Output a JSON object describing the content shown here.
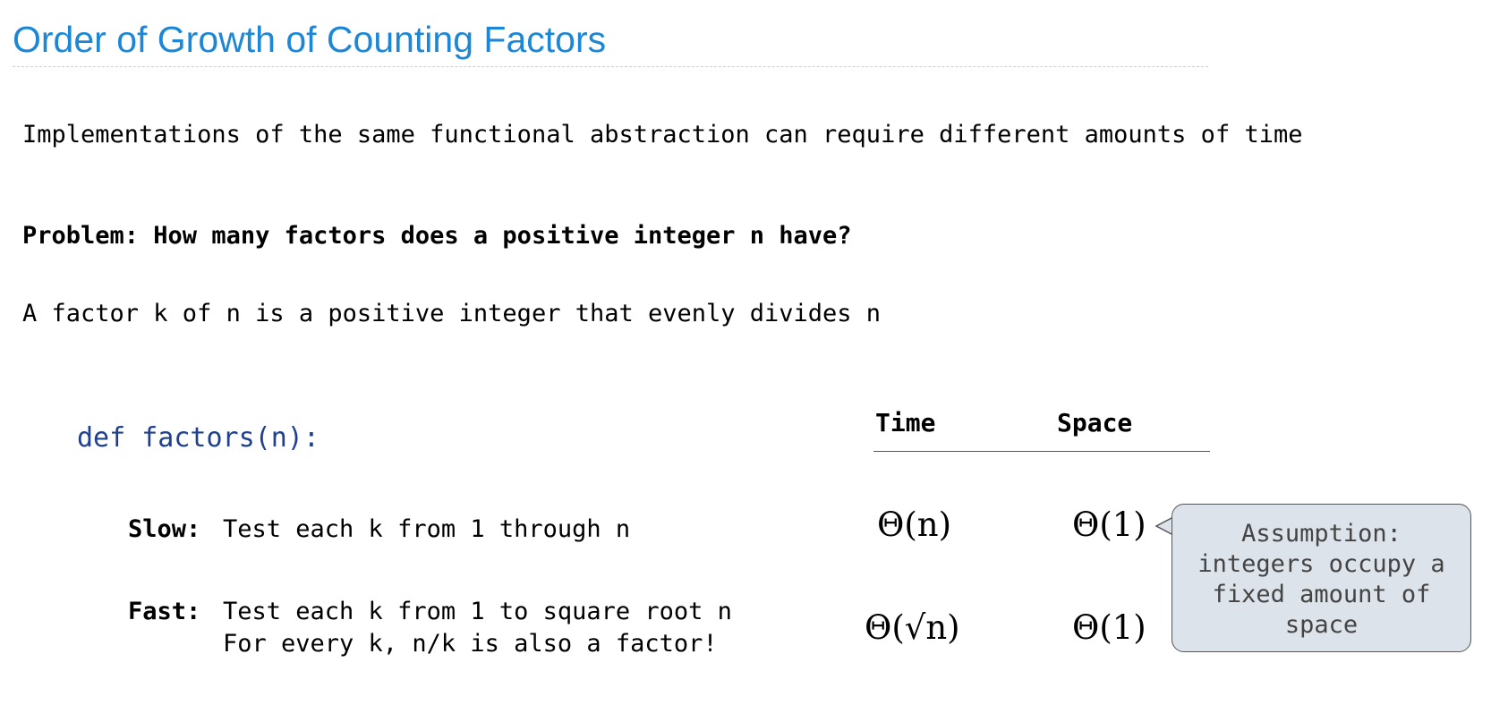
{
  "slide": {
    "title": "Order of Growth of Counting Factors",
    "intro": "Implementations of the same functional abstraction can require different amounts of time",
    "problem": "Problem: How many factors does a positive integer n have?",
    "definition": "A factor k of n is a positive integer that evenly divides n",
    "code_def": "def factors(n):"
  },
  "table": {
    "headers": [
      "Time",
      "Space"
    ],
    "rows": [
      {
        "label": "Slow:",
        "description": [
          "Test each k from 1 through n"
        ],
        "time": "Θ(n)",
        "space": "Θ(1)"
      },
      {
        "label": "Fast:",
        "description": [
          "Test each k from 1 to square root n",
          "For every k, n/k is also a factor!"
        ],
        "time": "Θ(√n)",
        "space": "Θ(1)"
      }
    ]
  },
  "callout": {
    "text": "Assumption:\nintegers occupy a\nfixed amount of\nspace"
  },
  "colors": {
    "title": "#1c87d6",
    "code": "#1f3f8f",
    "callout_bg": "#dde3ea"
  }
}
